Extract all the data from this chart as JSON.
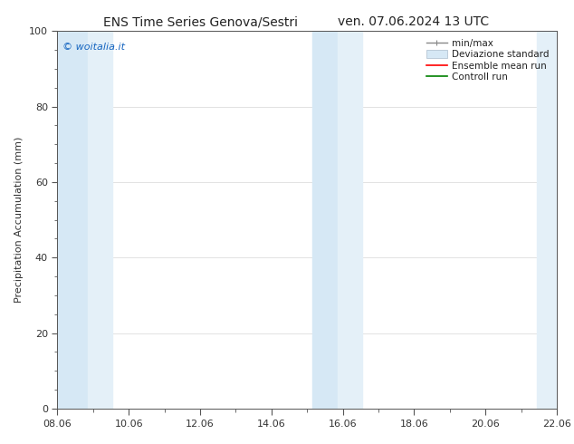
{
  "title_left": "ENS Time Series Genova/Sestri",
  "title_right": "ven. 07.06.2024 13 UTC",
  "ylabel": "Precipitation Accumulation (mm)",
  "watermark": "© woitalia.it",
  "watermark_color": "#1565c0",
  "ylim": [
    0,
    100
  ],
  "yticks": [
    0,
    20,
    40,
    60,
    80,
    100
  ],
  "xlim": [
    0,
    14
  ],
  "x_labels": [
    "08.06",
    "10.06",
    "12.06",
    "14.06",
    "16.06",
    "18.06",
    "20.06",
    "22.06"
  ],
  "x_positions": [
    0,
    2,
    4,
    6,
    8,
    10,
    12,
    14
  ],
  "shade_bands": [
    {
      "x_start": 0.0,
      "x_end": 0.85,
      "color": "#d6e8f5",
      "zorder": 1
    },
    {
      "x_start": 0.85,
      "x_end": 1.55,
      "color": "#e4f0f8",
      "zorder": 1
    },
    {
      "x_start": 7.15,
      "x_end": 7.85,
      "color": "#d6e8f5",
      "zorder": 1
    },
    {
      "x_start": 7.85,
      "x_end": 8.55,
      "color": "#e4f0f8",
      "zorder": 1
    },
    {
      "x_start": 13.45,
      "x_end": 14.0,
      "color": "#e4f0f8",
      "zorder": 1
    }
  ],
  "background_color": "#ffffff",
  "spine_color": "#555555",
  "tick_color": "#333333",
  "grid_color": "#cccccc",
  "legend_items": [
    {
      "label": "min/max",
      "color": "#888888",
      "lw": 1.0,
      "type": "errorbar"
    },
    {
      "label": "Deviazione standard",
      "color": "#d6e8f5",
      "lw": 8,
      "type": "band"
    },
    {
      "label": "Ensemble mean run",
      "color": "#ff0000",
      "lw": 1.2,
      "type": "line"
    },
    {
      "label": "Controll run",
      "color": "#008000",
      "lw": 1.2,
      "type": "line"
    }
  ],
  "title_fontsize": 10,
  "label_fontsize": 8,
  "tick_fontsize": 8,
  "legend_fontsize": 7.5,
  "watermark_fontsize": 8
}
